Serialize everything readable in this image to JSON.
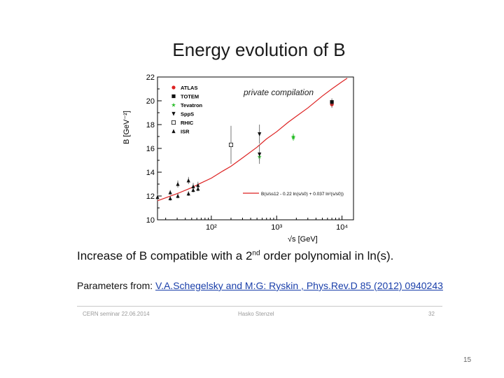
{
  "slide": {
    "title": "Energy evolution of B",
    "subtitle_pre": "Increase of B compatible with a 2",
    "subtitle_sup": "nd",
    "subtitle_post": " order polynomial in ln(s).",
    "params_label": "Parameters from: ",
    "params_link": "V.A.Schegelsky and M:G: Ryskin , Phys.Rev.D 85 (2012) 0940243",
    "footer_left": "CERN seminar 22.06.2014",
    "footer_center": "Hasko Stenzel",
    "footer_right": "32",
    "page_number": "15"
  },
  "chart_data": {
    "type": "scatter",
    "xlabel": "√s [GeV]",
    "ylabel": "B [GeV⁻²]",
    "x_scale": "log",
    "xlim": [
      15,
      15000
    ],
    "ylim": [
      10,
      22
    ],
    "x_ticks": [
      100,
      1000,
      10000
    ],
    "x_tick_labels": [
      "10²",
      "10³",
      "10⁴"
    ],
    "y_ticks": [
      10,
      12,
      14,
      16,
      18,
      20,
      22
    ],
    "y_tick_labels": [
      "10",
      "12",
      "14",
      "16",
      "18",
      "20",
      "22"
    ],
    "annotation": "private compilation",
    "legend_position": "top-left",
    "fit_label": "B(s/ss12 - 0.22 ln(s/s0) + 0.037 ln²(s/s0))",
    "fit_color": "#dd2222",
    "fit_curve": {
      "x": [
        15,
        20,
        30,
        50,
        70,
        100,
        150,
        200,
        300,
        500,
        700,
        1000,
        1500,
        2000,
        3000,
        5000,
        7000,
        10000,
        12000
      ],
      "y": [
        11.6,
        11.85,
        12.2,
        12.7,
        13.1,
        13.5,
        14.1,
        14.5,
        15.2,
        16.1,
        16.8,
        17.4,
        18.2,
        18.7,
        19.4,
        20.4,
        21.0,
        21.6,
        21.9
      ]
    },
    "series": [
      {
        "name": "ATLAS",
        "marker": "circle",
        "color": "#dd2222",
        "x": [
          7000
        ],
        "y": [
          19.7
        ],
        "err": [
          0.3
        ]
      },
      {
        "name": "TOTEM",
        "marker": "square",
        "color": "#111111",
        "x": [
          7000
        ],
        "y": [
          19.9
        ],
        "err": [
          0.3
        ]
      },
      {
        "name": "Tevatron",
        "marker": "star",
        "color": "#22bb22",
        "x": [
          546,
          1800,
          1800
        ],
        "y": [
          15.3,
          16.9,
          17.0
        ],
        "err": [
          0.3,
          0.25,
          0.25
        ]
      },
      {
        "name": "SppS",
        "marker": "triangle-down",
        "color": "#111111",
        "x": [
          546,
          546
        ],
        "y": [
          17.2,
          15.5
        ],
        "err": [
          0.8,
          0.8
        ]
      },
      {
        "name": "RHIC",
        "marker": "open-square",
        "color": "#111111",
        "x": [
          200
        ],
        "y": [
          16.3
        ],
        "err": [
          1.6
        ]
      },
      {
        "name": "ISR",
        "marker": "triangle",
        "color": "#111111",
        "x": [
          23.5,
          30.7,
          44.7,
          52.8,
          62.5,
          23.5,
          30.7,
          44.7,
          52.8,
          62.5,
          15
        ],
        "y": [
          12.3,
          13.0,
          13.3,
          12.8,
          12.9,
          11.8,
          12.0,
          12.2,
          12.5,
          12.6,
          11.9
        ],
        "err": [
          0.2,
          0.3,
          0.3,
          0.3,
          0.3,
          0.2,
          0.2,
          0.2,
          0.2,
          0.2,
          0.3
        ]
      }
    ]
  }
}
